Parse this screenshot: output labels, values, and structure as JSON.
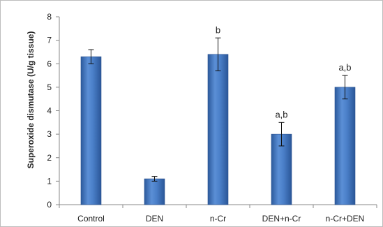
{
  "chart_data": {
    "type": "bar",
    "categories": [
      "Control",
      "DEN",
      "n-Cr",
      "DEN+n-Cr",
      "n-Cr+DEN"
    ],
    "values": [
      6.3,
      1.1,
      6.4,
      3.0,
      5.0
    ],
    "errors": [
      0.3,
      0.1,
      0.7,
      0.5,
      0.5
    ],
    "annotations": [
      "",
      "",
      "b",
      "a,b",
      "a,b"
    ],
    "xlabel": "",
    "ylabel": "Superoxide dismutase (U/g tissue)",
    "ylim": [
      0,
      8
    ],
    "yticks": [
      "0",
      "1",
      "2",
      "3",
      "4",
      "5",
      "6",
      "7",
      "8"
    ],
    "grid": false,
    "legend": false,
    "bar_color": "#3f74bd"
  }
}
